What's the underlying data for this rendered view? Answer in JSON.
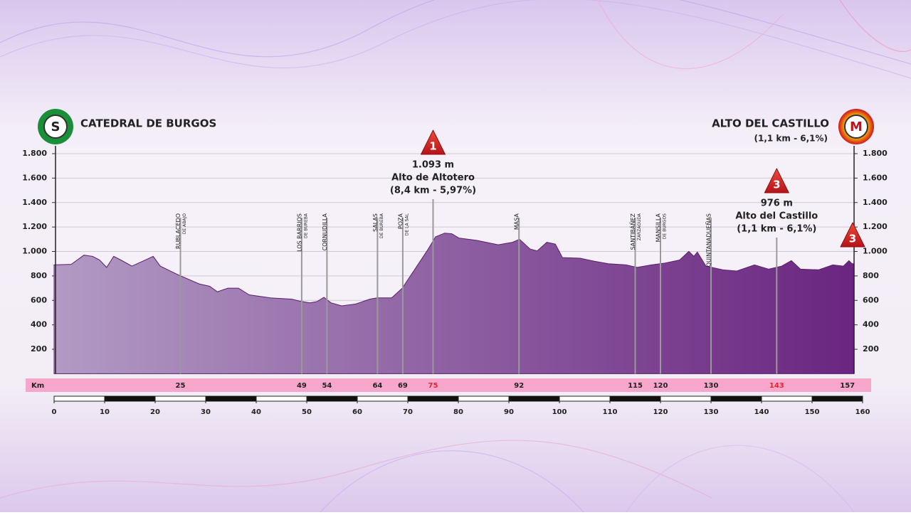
{
  "header": {
    "start": {
      "badge": "S",
      "name": "CATEDRAL DE BURGOS"
    },
    "finish": {
      "badge": "M",
      "name": "ALTO DEL CASTILLO",
      "detail": "(1,1 km - 6,1%)"
    }
  },
  "chart_data": {
    "type": "area",
    "x": [
      0,
      3.4,
      5.9,
      7.6,
      9,
      10.4,
      11.8,
      13.2,
      15.4,
      17.5,
      19.6,
      21,
      24.5,
      28.7,
      30.8,
      32.3,
      34.4,
      36.5,
      38.6,
      42.8,
      47,
      48.5,
      50.6,
      52,
      53.4,
      54.8,
      56.9,
      59.7,
      62.5,
      63.9,
      66.8,
      68.9,
      71,
      73.8,
      75.5,
      77.3,
      78.7,
      80.1,
      83.7,
      87.9,
      90.7,
      92.1,
      94.2,
      95.6,
      97.5,
      99.2,
      100.6,
      104.1,
      106.9,
      109.7,
      113.2,
      115.4,
      118.2,
      121,
      123.8,
      125.6,
      126.6,
      127.3,
      129,
      132.3,
      135.1,
      138.6,
      141.4,
      144,
      145.9,
      147.7,
      151.3,
      154.1,
      156.2,
      157.3,
      157.9
    ],
    "values": [
      890,
      895,
      970,
      960,
      930,
      870,
      960,
      930,
      880,
      920,
      960,
      880,
      810,
      735,
      715,
      670,
      700,
      700,
      645,
      620,
      610,
      595,
      580,
      590,
      625,
      580,
      555,
      570,
      610,
      620,
      620,
      700,
      830,
      1005,
      1120,
      1150,
      1145,
      1110,
      1090,
      1055,
      1075,
      1100,
      1020,
      1005,
      1075,
      1060,
      950,
      945,
      920,
      900,
      890,
      870,
      890,
      905,
      930,
      1000,
      960,
      995,
      880,
      850,
      840,
      890,
      855,
      880,
      925,
      855,
      850,
      890,
      880,
      925,
      900
    ],
    "xlim": [
      0,
      160
    ],
    "xticks": [
      0,
      10,
      20,
      30,
      40,
      50,
      60,
      70,
      80,
      90,
      100,
      110,
      120,
      130,
      140,
      150,
      160
    ],
    "ylim": [
      0,
      1800
    ],
    "yticks": [
      200,
      400,
      600,
      800,
      {
        "value": 1000,
        "label": "1.000"
      },
      {
        "value": 1200,
        "label": "1.200"
      },
      {
        "value": 1400,
        "label": "1.400"
      },
      {
        "value": 1600,
        "label": "1.600"
      },
      {
        "value": 1800,
        "label": "1.800"
      }
    ],
    "grid": true,
    "color_start": "#b29ac4",
    "color_end": "#6a2580",
    "towns": [
      {
        "km": 25,
        "name": "RUBLACEDO",
        "sub": "DE ABAJO"
      },
      {
        "km": 49,
        "name": "LOS BARRIOS",
        "sub": "DE BUREBA"
      },
      {
        "km": 54,
        "name": "CORNUDILLA"
      },
      {
        "km": 64,
        "name": "SALAS",
        "sub": "DE BUREBA"
      },
      {
        "km": 69,
        "name": "POZA",
        "sub": "DE LA SAL"
      },
      {
        "km": 92,
        "name": "MASA"
      },
      {
        "km": 115,
        "name": "SANTIBÁÑEZ",
        "sub": "ZARZAGUDA"
      },
      {
        "km": 120,
        "name": "MANSILLA",
        "sub": "DE BURGOS"
      },
      {
        "km": 130,
        "name": "QUINTANADUEÑAS"
      }
    ],
    "climbs": [
      {
        "km": 75,
        "category": "1",
        "altitude": "1.093 m",
        "name": "Alto de Altotero",
        "detail": "(8,4 km - 5,97%)"
      },
      {
        "km": 143,
        "category": "3",
        "altitude": "976 m",
        "name": "Alto del Castillo",
        "detail": "(1,1 km - 6,1%)"
      }
    ],
    "finish_climb": {
      "category": "3"
    },
    "km_row": {
      "label": "Km",
      "values": [
        25,
        49,
        54,
        64,
        69,
        75,
        92,
        115,
        120,
        130,
        143,
        157
      ]
    }
  }
}
